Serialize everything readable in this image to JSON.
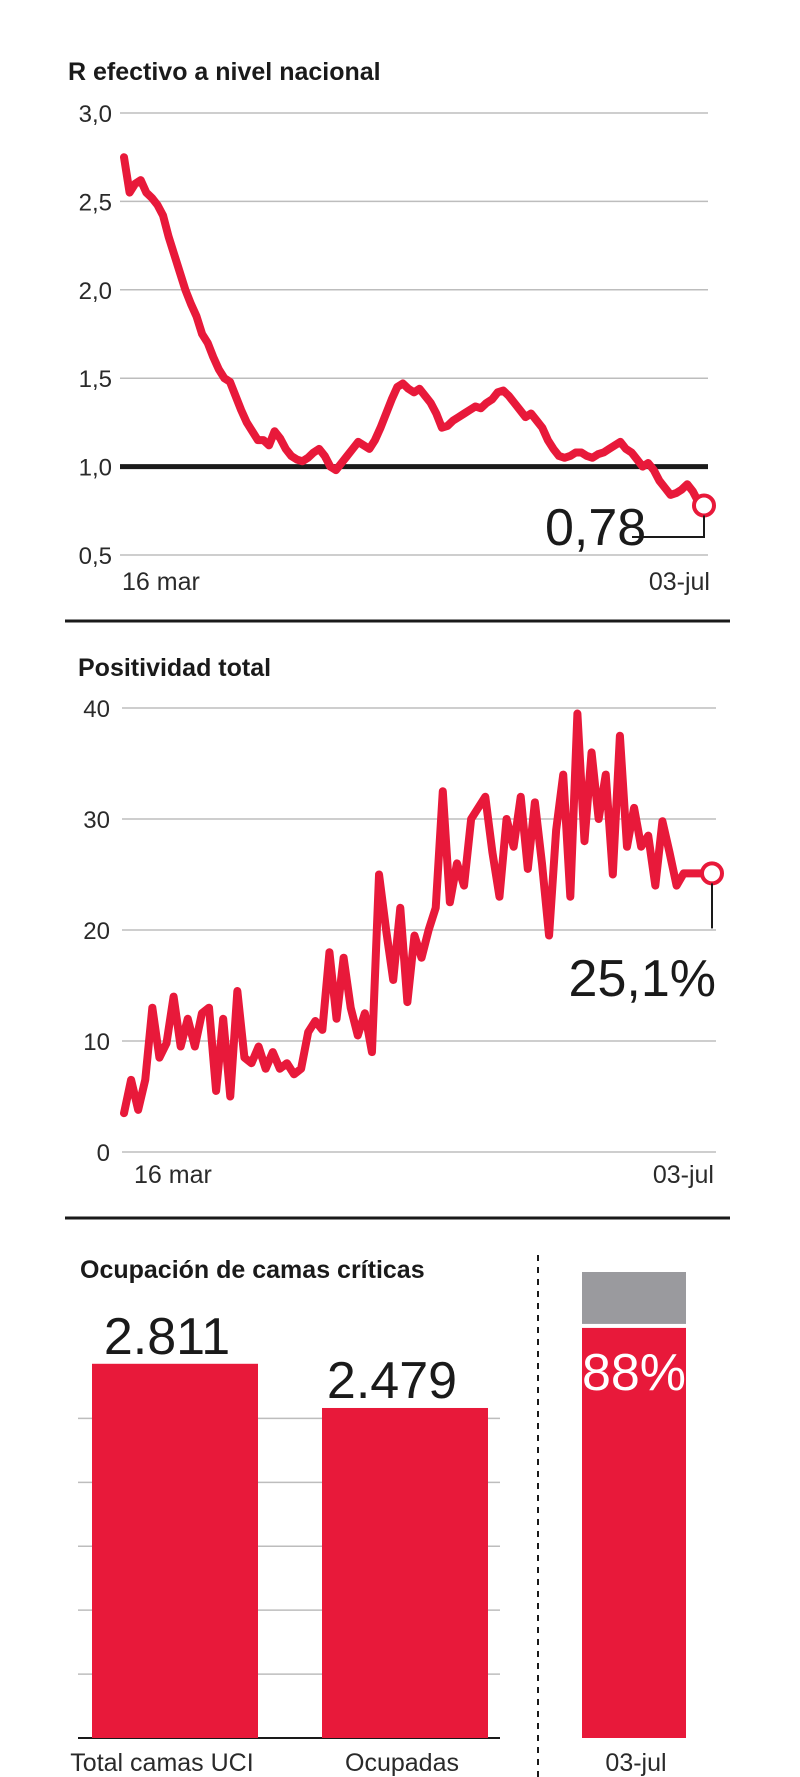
{
  "colors": {
    "accent": "#e8193a",
    "grey": "#9a9a9e",
    "ink": "#1a1a1a"
  },
  "chart_data": [
    {
      "type": "line",
      "title": "R efectivo a nivel nacional",
      "ylim": [
        0.5,
        3.0
      ],
      "yticks": [
        3.0,
        2.5,
        2.0,
        1.5,
        1.0,
        0.5
      ],
      "ytick_labels": [
        "3,0",
        "2,5",
        "2,0",
        "1,5",
        "1,0",
        "0,5"
      ],
      "reference_line": 1.0,
      "x_start_label": "16 mar",
      "x_end_label": "03-jul",
      "last_value_label": "0,78",
      "values": [
        2.75,
        2.55,
        2.6,
        2.62,
        2.55,
        2.52,
        2.48,
        2.42,
        2.3,
        2.2,
        2.1,
        2.0,
        1.92,
        1.85,
        1.75,
        1.7,
        1.62,
        1.55,
        1.5,
        1.48,
        1.4,
        1.32,
        1.25,
        1.2,
        1.15,
        1.15,
        1.12,
        1.2,
        1.16,
        1.1,
        1.06,
        1.04,
        1.03,
        1.05,
        1.08,
        1.1,
        1.06,
        1.0,
        0.98,
        1.02,
        1.06,
        1.1,
        1.14,
        1.12,
        1.1,
        1.15,
        1.22,
        1.3,
        1.38,
        1.45,
        1.47,
        1.44,
        1.42,
        1.44,
        1.4,
        1.36,
        1.3,
        1.22,
        1.23,
        1.26,
        1.28,
        1.3,
        1.32,
        1.34,
        1.33,
        1.36,
        1.38,
        1.42,
        1.43,
        1.4,
        1.36,
        1.32,
        1.28,
        1.3,
        1.26,
        1.22,
        1.15,
        1.1,
        1.06,
        1.05,
        1.06,
        1.08,
        1.08,
        1.06,
        1.05,
        1.07,
        1.08,
        1.1,
        1.12,
        1.14,
        1.1,
        1.08,
        1.04,
        1.0,
        1.02,
        0.98,
        0.92,
        0.88,
        0.84,
        0.85,
        0.87,
        0.9,
        0.86,
        0.8,
        0.78
      ]
    },
    {
      "type": "line",
      "title": "Positividad total",
      "ylim": [
        0,
        40
      ],
      "yticks": [
        40,
        30,
        20,
        10,
        0
      ],
      "ytick_labels": [
        "40",
        "30",
        "20",
        "10",
        "0"
      ],
      "x_start_label": "16 mar",
      "x_end_label": "03-jul",
      "last_value_label": "25,1%",
      "values": [
        3.5,
        6.5,
        3.8,
        6.5,
        13,
        8.5,
        9.8,
        14,
        9.5,
        12,
        9.5,
        12.5,
        13,
        5.5,
        12,
        5,
        14.5,
        8.5,
        8,
        9.5,
        7.5,
        9,
        7.5,
        8,
        7,
        7.5,
        10.8,
        11.8,
        11,
        18,
        12,
        17.5,
        13,
        10.5,
        12.5,
        9,
        25,
        20,
        15.5,
        22,
        13.5,
        19.5,
        17.5,
        20,
        22,
        32.5,
        22.5,
        26,
        24,
        30,
        31,
        32,
        27,
        23,
        30,
        27.5,
        32,
        25.5,
        31.5,
        26,
        19.5,
        29,
        34,
        23,
        39.5,
        28,
        36,
        30,
        34,
        25,
        37.5,
        27.5,
        31,
        27.5,
        28.5,
        24,
        29.8,
        27,
        24,
        25.1,
        25.1,
        25.1,
        25.1,
        25.1
      ]
    },
    {
      "type": "bar",
      "title": "Ocupación de camas críticas",
      "categories": [
        "Total camas UCI",
        "Ocupadas"
      ],
      "values": [
        2811,
        2479
      ],
      "value_labels": [
        "2.811",
        "2.479"
      ],
      "ylim": [
        0,
        3200
      ],
      "stacked_bar": {
        "label": "03-jul",
        "percent": 88,
        "percent_label": "88%"
      }
    }
  ]
}
